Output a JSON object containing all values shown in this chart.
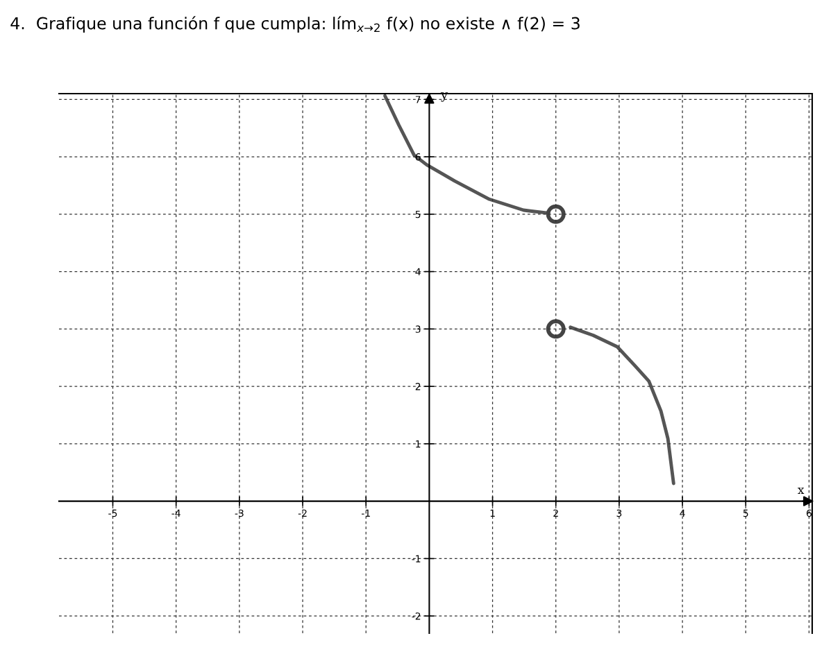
{
  "chart_data": {
    "type": "line",
    "title": "4.  Grafique una función f que cumpla: lím$_{x→2}$ f(x) no existe ∧ f(2) = 3",
    "xlabel": "x",
    "ylabel": "y",
    "xlim": [
      -5.85,
      6.05
    ],
    "ylim": [
      -2.3,
      7.1
    ],
    "xticks": [
      -5,
      -4,
      -3,
      -2,
      -1,
      1,
      2,
      3,
      4,
      5,
      6
    ],
    "yticks": [
      -2,
      -1,
      1,
      2,
      3,
      4,
      5,
      6,
      7
    ],
    "grid": true,
    "series": [
      {
        "color": "#555555",
        "x": [
          -0.7,
          -0.48,
          -0.24,
          -0.04,
          0.4,
          0.95,
          1.49,
          1.87
        ],
        "values": [
          7.06,
          6.55,
          6.03,
          5.86,
          5.58,
          5.26,
          5.07,
          5.02
        ]
      },
      {
        "color": "#555555",
        "x": [
          2.23,
          2.59,
          2.97,
          3.25,
          3.47,
          3.66,
          3.77,
          3.86
        ],
        "values": [
          3.03,
          2.89,
          2.69,
          2.36,
          2.09,
          1.57,
          1.09,
          0.31
        ]
      },
      {
        "type": "scatter",
        "marker": "circle",
        "color": "#444444",
        "x": [
          2,
          2
        ],
        "values": [
          5,
          3
        ]
      }
    ]
  }
}
